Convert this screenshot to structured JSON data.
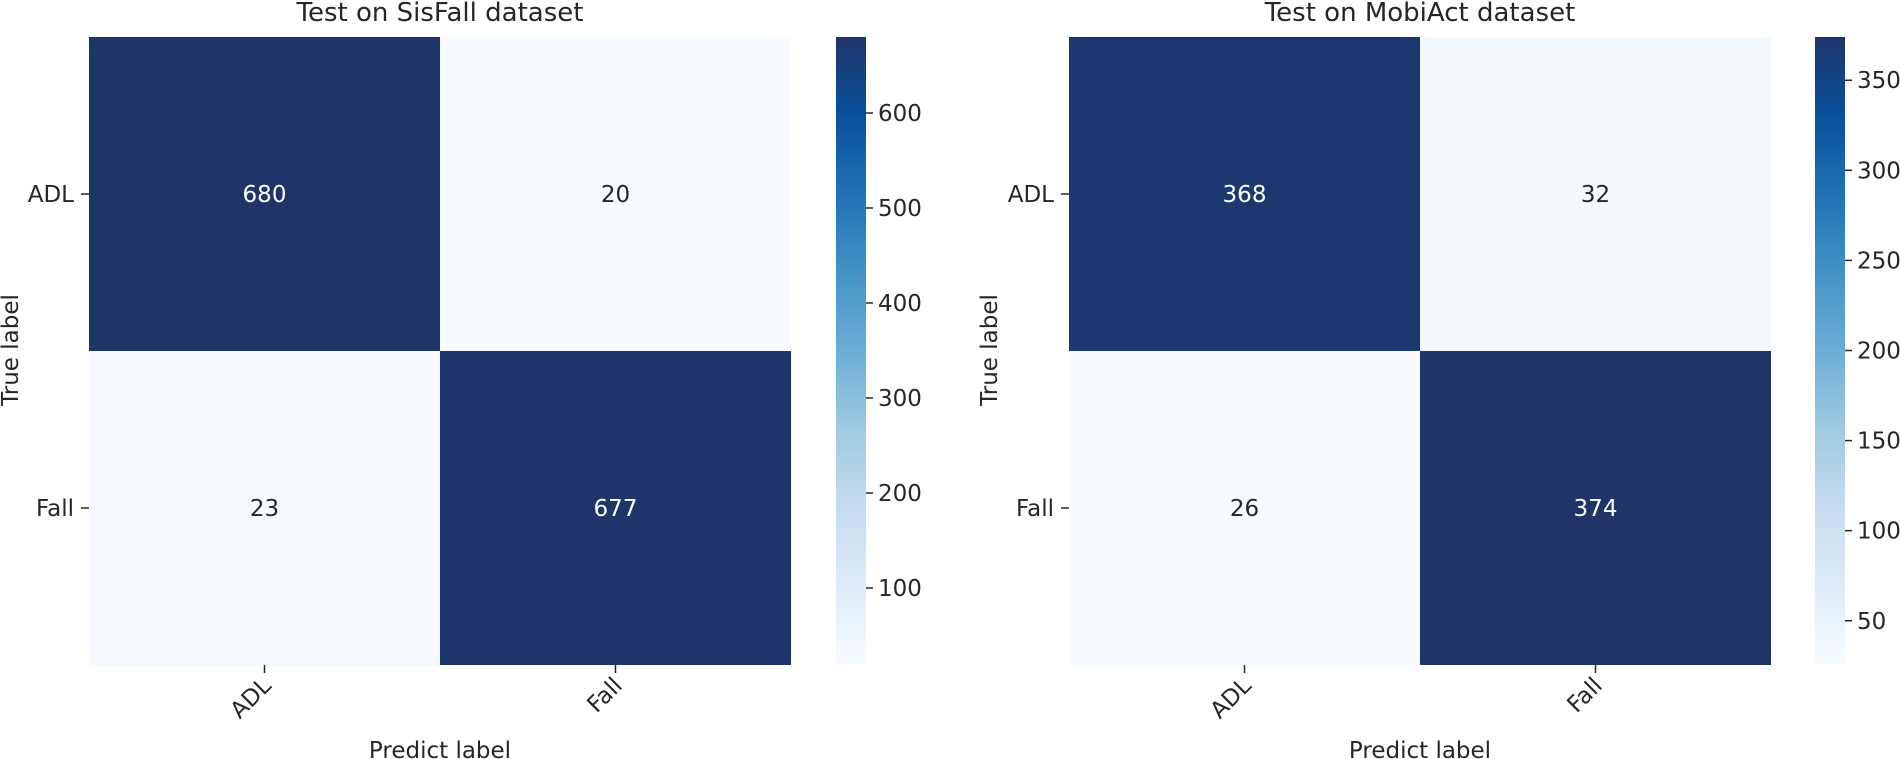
{
  "chart_data": [
    {
      "type": "heatmap",
      "title": "Test on SisFall dataset",
      "xlabel": "Predict label",
      "ylabel": "True label",
      "x_categories": [
        "ADL",
        "Fall"
      ],
      "y_categories": [
        "ADL",
        "Fall"
      ],
      "values": [
        [
          680,
          20
        ],
        [
          23,
          677
        ]
      ],
      "colorbar": {
        "min": 20,
        "max": 680,
        "ticks": [
          100,
          200,
          300,
          400,
          500,
          600
        ]
      },
      "colormap": "Blues"
    },
    {
      "type": "heatmap",
      "title": "Test on MobiAct dataset",
      "xlabel": "Predict label",
      "ylabel": "True label",
      "x_categories": [
        "ADL",
        "Fall"
      ],
      "y_categories": [
        "ADL",
        "Fall"
      ],
      "values": [
        [
          368,
          32
        ],
        [
          26,
          374
        ]
      ],
      "colorbar": {
        "min": 26,
        "max": 374,
        "ticks": [
          50,
          100,
          150,
          200,
          250,
          300,
          350
        ]
      },
      "colormap": "Blues"
    }
  ],
  "colors": {
    "low": "#f7fbff",
    "high": "#1f3469",
    "text_dark": "#262626",
    "text_light": "#ffffff"
  }
}
